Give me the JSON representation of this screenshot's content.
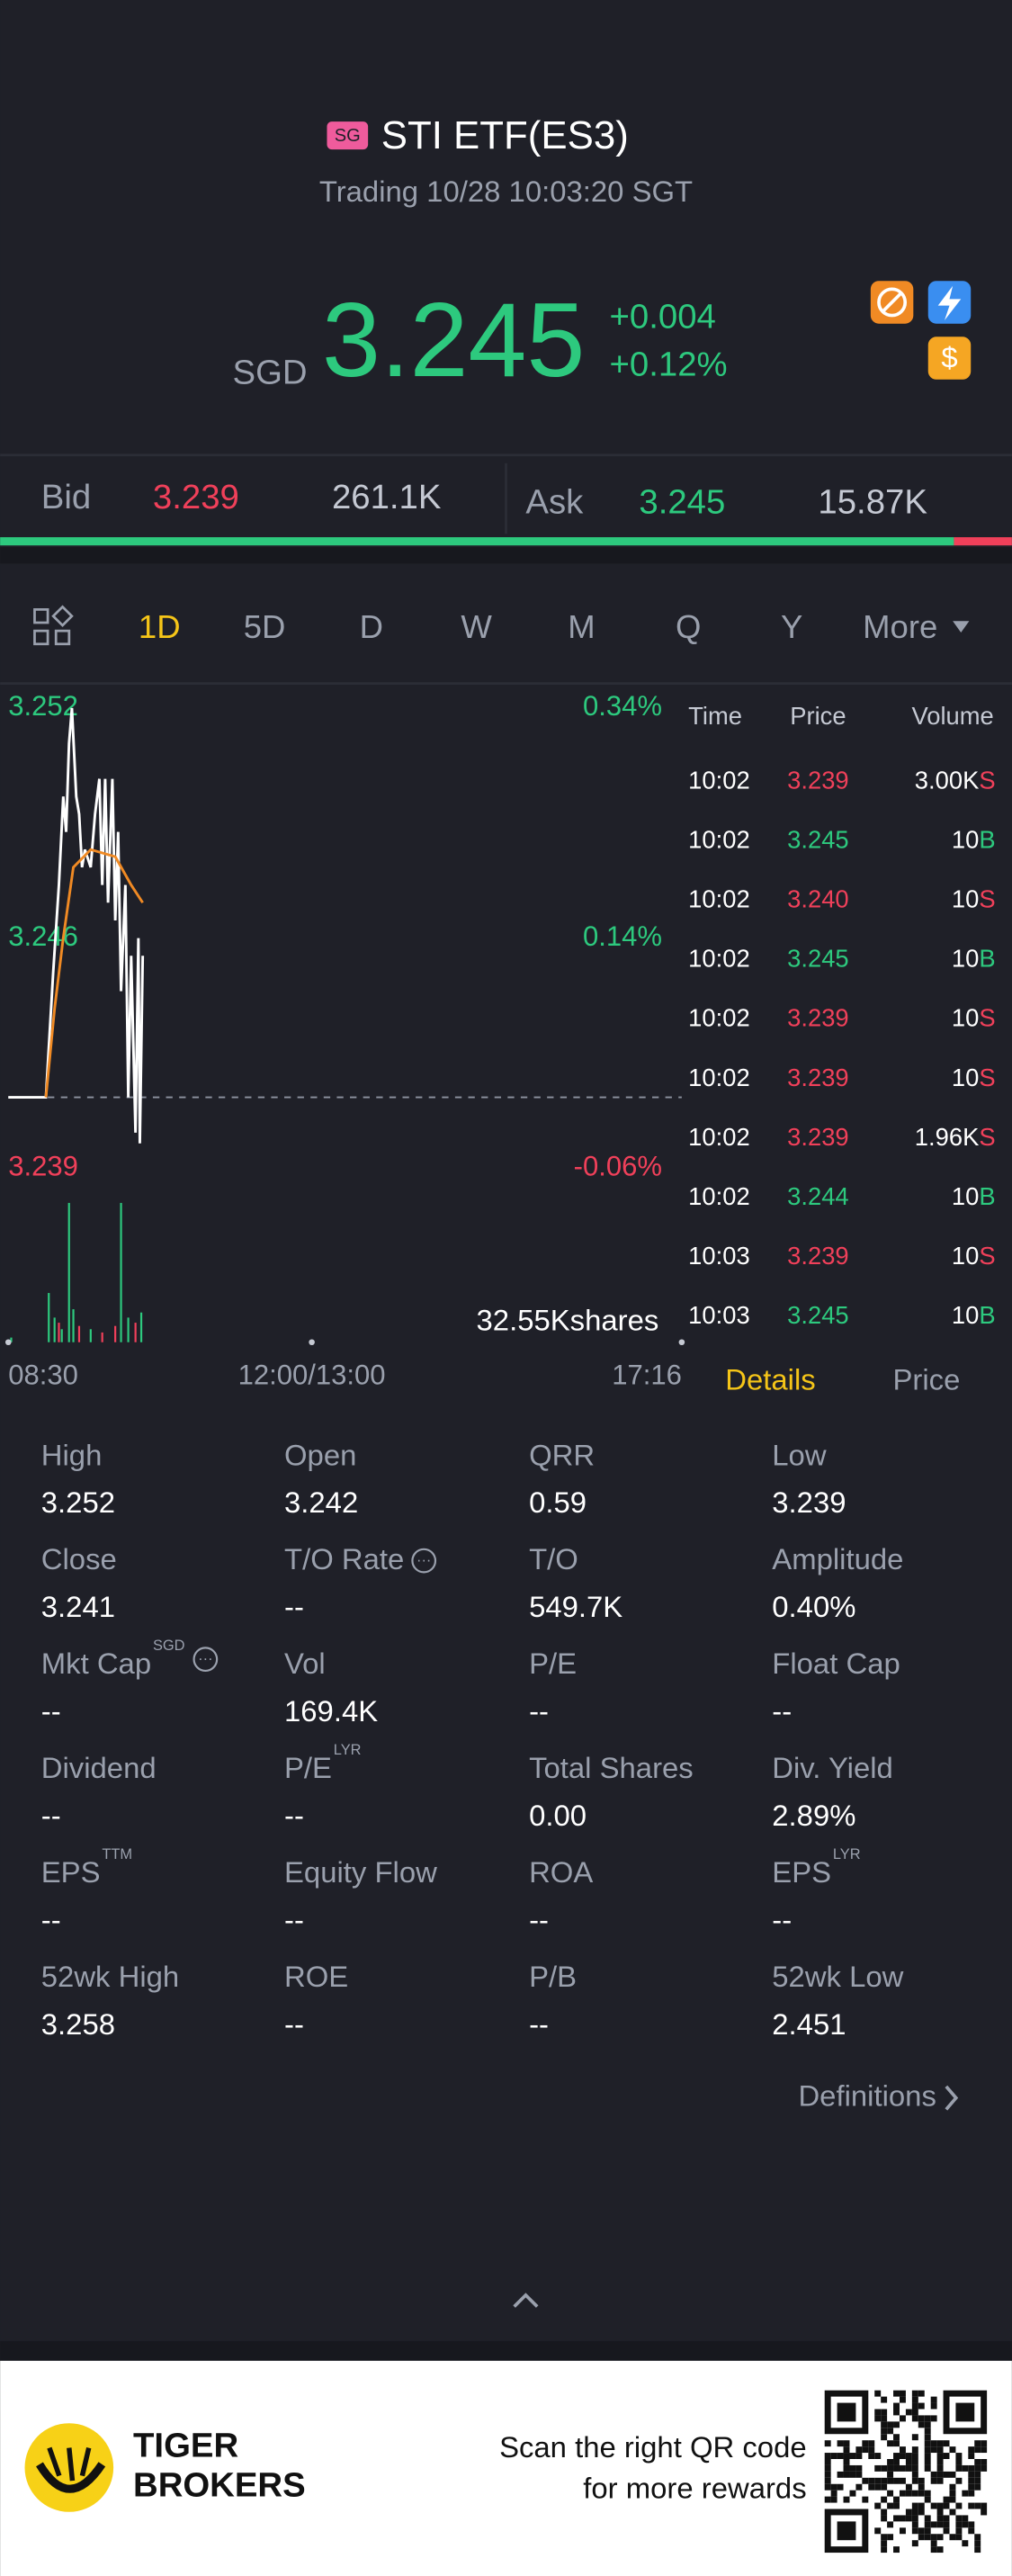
{
  "header": {
    "badge": "SG",
    "title": "STI ETF(ES3)",
    "status": "Trading 10/28 10:03:20 SGT"
  },
  "quote": {
    "currency": "SGD",
    "price": "3.245",
    "change": "+0.004",
    "change_pct": "+0.12%"
  },
  "order_book": {
    "bid_label": "Bid",
    "bid_price": "3.239",
    "ask_label": "Ask",
    "ask_price": "3.245",
    "depth": {
      "values": [
        261100,
        15870
      ],
      "value_labels": [
        "261.1K",
        "15.87K"
      ]
    }
  },
  "tabs": {
    "items": [
      "1D",
      "5D",
      "D",
      "W",
      "M",
      "Q",
      "Y",
      "More"
    ],
    "active": 0
  },
  "chart_data": {
    "type": "line",
    "xlim": [
      0,
      466
    ],
    "xticks": [
      {
        "value": 0,
        "label": "08:30"
      },
      {
        "value": 210,
        "label": "12:00/13:00"
      },
      {
        "value": 466,
        "label": "17:16"
      }
    ],
    "ylim": [
      3.239,
      3.252
    ],
    "yticks": [
      3.252,
      {
        "value": 3.2455,
        "label": "3.246"
      },
      3.239
    ],
    "y2lim": [
      -0.06,
      0.34
    ],
    "y2ticks": [
      {
        "value": 0.34,
        "label": "0.34%"
      },
      {
        "value": 0.14,
        "label": "0.14%"
      },
      {
        "value": -0.06,
        "label": "-0.06%"
      }
    ],
    "reference_line": 3.241,
    "up_color": "#2dc97e",
    "down_color": "#f0405a",
    "series": [
      {
        "name": "Price",
        "color": "#ffffff",
        "x": [
          0,
          26,
          31,
          35,
          38,
          40,
          42,
          44,
          47,
          49,
          51,
          53,
          57,
          60,
          63,
          65,
          67,
          69,
          72,
          74,
          76,
          78,
          81,
          83,
          85,
          88,
          90,
          91,
          93
        ],
        "values": [
          3.241,
          3.241,
          3.2445,
          3.247,
          3.2495,
          3.2485,
          3.251,
          3.252,
          3.2495,
          3.249,
          3.2475,
          3.248,
          3.2475,
          3.249,
          3.25,
          3.247,
          3.25,
          3.2465,
          3.25,
          3.246,
          3.2485,
          3.244,
          3.247,
          3.241,
          3.245,
          3.24,
          3.2455,
          3.2397,
          3.245
        ]
      },
      {
        "name": "Average",
        "color": "#f08a24",
        "x": [
          26,
          32,
          38,
          45,
          57,
          74,
          85,
          93
        ],
        "values": [
          3.241,
          3.2435,
          3.2455,
          3.2475,
          3.248,
          3.2478,
          3.247,
          3.2465
        ]
      }
    ],
    "volume": {
      "ylim": [
        0,
        32550
      ],
      "yticks": [
        {
          "value": 32550,
          "label": "32.55Kshares"
        }
      ],
      "x": [
        2,
        28,
        32,
        35,
        37,
        42,
        45,
        49,
        57,
        65,
        74,
        78,
        83,
        88,
        92
      ],
      "values": [
        1000,
        10600,
        5300,
        4200,
        2800,
        30000,
        7100,
        3500,
        2800,
        2100,
        3500,
        30000,
        5300,
        4200,
        6400
      ],
      "colors": [
        "#2dc97e",
        "#2dc97e",
        "#2dc97e",
        "#f0405a",
        "#2dc97e",
        "#2dc97e",
        "#2dc97e",
        "#f0405a",
        "#2dc97e",
        "#f0405a",
        "#f0405a",
        "#2dc97e",
        "#2dc97e",
        "#f0405a",
        "#2dc97e"
      ]
    }
  },
  "trades": {
    "header": [
      "Time",
      "Price",
      "Volume"
    ],
    "rows": [
      [
        "10:02",
        "3.239",
        "3.00K",
        "S"
      ],
      [
        "10:02",
        "3.245",
        "10",
        "B"
      ],
      [
        "10:02",
        "3.240",
        "10",
        "S"
      ],
      [
        "10:02",
        "3.245",
        "10",
        "B"
      ],
      [
        "10:02",
        "3.239",
        "10",
        "S"
      ],
      [
        "10:02",
        "3.239",
        "10",
        "S"
      ],
      [
        "10:02",
        "3.239",
        "1.96K",
        "S"
      ],
      [
        "10:02",
        "3.244",
        "10",
        "B"
      ],
      [
        "10:03",
        "3.239",
        "10",
        "S"
      ],
      [
        "10:03",
        "3.245",
        "10",
        "B"
      ]
    ]
  },
  "panel_tabs": {
    "items": [
      "Details",
      "Price"
    ],
    "active": 0
  },
  "details": [
    [
      {
        "label": "High",
        "value": "3.252"
      },
      {
        "label": "Open",
        "value": "3.242"
      },
      {
        "label": "QRR",
        "value": "0.59"
      },
      {
        "label": "Low",
        "value": "3.239"
      }
    ],
    [
      {
        "label": "Close",
        "value": "3.241"
      },
      {
        "label": "T/O Rate",
        "value": "--"
      },
      {
        "label": "T/O",
        "value": "549.7K"
      },
      {
        "label": "Amplitude",
        "value": "0.40%"
      }
    ],
    [
      {
        "label": "Mkt Cap",
        "sup": "SGD",
        "value": "--"
      },
      {
        "label": "Vol",
        "value": "169.4K"
      },
      {
        "label": "P/E",
        "value": "--"
      },
      {
        "label": "Float Cap",
        "value": "--"
      }
    ],
    [
      {
        "label": "Dividend",
        "value": "--"
      },
      {
        "label": "P/E",
        "sup": "LYR",
        "value": "--"
      },
      {
        "label": "Total Shares",
        "value": "0.00"
      },
      {
        "label": "Div. Yield",
        "value": "2.89%"
      }
    ],
    [
      {
        "label": "EPS",
        "sup": "TTM",
        "value": "--"
      },
      {
        "label": "Equity Flow",
        "value": "--"
      },
      {
        "label": "ROA",
        "value": "--"
      },
      {
        "label": "EPS",
        "sup": "LYR",
        "value": "--"
      }
    ],
    [
      {
        "label": "52wk High",
        "value": "3.258"
      },
      {
        "label": "ROE",
        "value": "--"
      },
      {
        "label": "P/B",
        "value": "--"
      },
      {
        "label": "52wk Low",
        "value": "2.451"
      }
    ]
  ],
  "definitions": "Definitions",
  "footer": {
    "brand_line1": "TIGER",
    "brand_line2": "BROKERS",
    "promo_line1": "Scan the right QR code",
    "promo_line2": "for more rewards"
  }
}
